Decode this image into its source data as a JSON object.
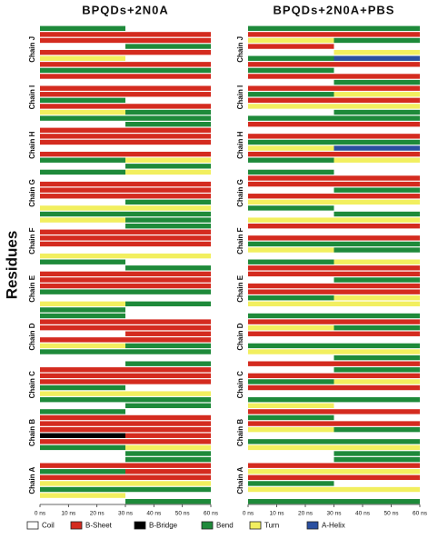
{
  "legend": [
    {
      "name": "Coil",
      "color": "#ffffff"
    },
    {
      "name": "B-Sheet",
      "color": "#d42b1f"
    },
    {
      "name": "B-Bridge",
      "color": "#000000"
    },
    {
      "name": "Bend",
      "color": "#1e8a3a"
    },
    {
      "name": "Turn",
      "color": "#f2ef5f"
    },
    {
      "name": "A-Helix",
      "color": "#2a4fa0"
    }
  ],
  "chart_data": [
    {
      "type": "heatmap",
      "title": "BPQDs+2N0A",
      "y_label": "Residues",
      "categories": [
        "Chain J",
        "Chain I",
        "Chain H",
        "Chain G",
        "Chain F",
        "Chain E",
        "Chain D",
        "Chain C",
        "Chain B",
        "Chain A"
      ],
      "bins": [
        0,
        30,
        60
      ],
      "xlim": [
        0,
        60
      ],
      "xticks": [
        {
          "value": 0,
          "label": "0 ns"
        },
        {
          "value": 10,
          "label": "10 ns"
        },
        {
          "value": 20,
          "label": "20 ns"
        },
        {
          "value": 30,
          "label": "30 ns"
        },
        {
          "value": 40,
          "label": "40 ns"
        },
        {
          "value": 50,
          "label": "50 ns"
        },
        {
          "value": 60,
          "label": "60 ns"
        }
      ],
      "values": [
        [
          [
            3,
            0
          ],
          [
            1,
            1
          ],
          [
            1,
            1
          ],
          [
            0,
            3
          ],
          [
            1,
            1
          ],
          [
            4,
            0
          ],
          [
            1,
            1
          ],
          [
            3,
            3
          ]
        ],
        [
          [
            1,
            1
          ],
          [
            0,
            0
          ],
          [
            1,
            1
          ],
          [
            1,
            1
          ],
          [
            3,
            0
          ],
          [
            1,
            1
          ],
          [
            4,
            3
          ],
          [
            3,
            3
          ]
        ],
        [
          [
            0,
            3
          ],
          [
            1,
            1
          ],
          [
            1,
            1
          ],
          [
            1,
            1
          ],
          [
            0,
            0
          ],
          [
            1,
            1
          ],
          [
            3,
            4
          ],
          [
            0,
            3
          ]
        ],
        [
          [
            3,
            4
          ],
          [
            0,
            0
          ],
          [
            1,
            1
          ],
          [
            1,
            1
          ],
          [
            1,
            1
          ],
          [
            0,
            3
          ],
          [
            4,
            4
          ],
          [
            3,
            3
          ]
        ],
        [
          [
            4,
            3
          ],
          [
            0,
            3
          ],
          [
            1,
            1
          ],
          [
            1,
            1
          ],
          [
            1,
            1
          ],
          [
            0,
            0
          ],
          [
            4,
            4
          ],
          [
            3,
            0
          ]
        ],
        [
          [
            0,
            3
          ],
          [
            1,
            1
          ],
          [
            1,
            1
          ],
          [
            1,
            1
          ],
          [
            3,
            3
          ],
          [
            0,
            0
          ],
          [
            4,
            3
          ],
          [
            3,
            0
          ]
        ],
        [
          [
            3,
            0
          ],
          [
            1,
            1
          ],
          [
            1,
            1
          ],
          [
            0,
            1
          ],
          [
            1,
            1
          ],
          [
            4,
            3
          ],
          [
            3,
            3
          ],
          [
            0,
            0
          ]
        ],
        [
          [
            0,
            3
          ],
          [
            1,
            1
          ],
          [
            1,
            1
          ],
          [
            1,
            1
          ],
          [
            3,
            0
          ],
          [
            4,
            4
          ],
          [
            3,
            3
          ],
          [
            0,
            3
          ]
        ],
        [
          [
            3,
            0
          ],
          [
            1,
            1
          ],
          [
            1,
            1
          ],
          [
            1,
            1
          ],
          [
            2,
            1
          ],
          [
            1,
            1
          ],
          [
            3,
            4
          ],
          [
            0,
            3
          ]
        ],
        [
          [
            0,
            3
          ],
          [
            1,
            1
          ],
          [
            3,
            1
          ],
          [
            1,
            1
          ],
          [
            4,
            4
          ],
          [
            3,
            3
          ],
          [
            4,
            0
          ],
          [
            0,
            3
          ]
        ]
      ]
    },
    {
      "type": "heatmap",
      "title": "BPQDs+2N0A+PBS",
      "categories": [
        "Chain J",
        "Chain I",
        "Chain H",
        "Chain G",
        "Chain F",
        "Chain E",
        "Chain D",
        "Chain C",
        "Chain B",
        "Chain A"
      ],
      "bins": [
        0,
        30,
        60
      ],
      "xlim": [
        0,
        60
      ],
      "xticks": [
        {
          "value": 0,
          "label": "0 ns"
        },
        {
          "value": 10,
          "label": "10 ns"
        },
        {
          "value": 20,
          "label": "20 ns"
        },
        {
          "value": 30,
          "label": "30 ns"
        },
        {
          "value": 40,
          "label": "40 ns"
        },
        {
          "value": 50,
          "label": "50 ns"
        },
        {
          "value": 60,
          "label": "60 ns"
        }
      ],
      "values": [
        [
          [
            3,
            3
          ],
          [
            1,
            1
          ],
          [
            4,
            3
          ],
          [
            1,
            0
          ],
          [
            0,
            4
          ],
          [
            3,
            5
          ],
          [
            1,
            1
          ],
          [
            3,
            0
          ]
        ],
        [
          [
            1,
            1
          ],
          [
            0,
            3
          ],
          [
            1,
            1
          ],
          [
            3,
            4
          ],
          [
            1,
            1
          ],
          [
            4,
            4
          ],
          [
            0,
            3
          ],
          [
            3,
            3
          ]
        ],
        [
          [
            1,
            1
          ],
          [
            0,
            0
          ],
          [
            1,
            1
          ],
          [
            3,
            3
          ],
          [
            4,
            5
          ],
          [
            1,
            1
          ],
          [
            3,
            4
          ],
          [
            0,
            0
          ]
        ],
        [
          [
            3,
            0
          ],
          [
            1,
            1
          ],
          [
            1,
            1
          ],
          [
            0,
            3
          ],
          [
            1,
            1
          ],
          [
            4,
            4
          ],
          [
            3,
            0
          ],
          [
            0,
            3
          ]
        ],
        [
          [
            4,
            4
          ],
          [
            1,
            1
          ],
          [
            0,
            0
          ],
          [
            1,
            1
          ],
          [
            3,
            3
          ],
          [
            4,
            3
          ],
          [
            0,
            0
          ],
          [
            3,
            4
          ]
        ],
        [
          [
            1,
            1
          ],
          [
            1,
            1
          ],
          [
            0,
            3
          ],
          [
            1,
            1
          ],
          [
            1,
            1
          ],
          [
            3,
            4
          ],
          [
            4,
            4
          ],
          [
            0,
            0
          ]
        ],
        [
          [
            3,
            3
          ],
          [
            1,
            1
          ],
          [
            4,
            3
          ],
          [
            1,
            1
          ],
          [
            0,
            0
          ],
          [
            3,
            3
          ],
          [
            4,
            4
          ],
          [
            0,
            3
          ]
        ],
        [
          [
            1,
            1
          ],
          [
            0,
            3
          ],
          [
            1,
            1
          ],
          [
            3,
            4
          ],
          [
            1,
            1
          ],
          [
            0,
            0
          ],
          [
            3,
            3
          ],
          [
            4,
            0
          ]
        ],
        [
          [
            1,
            1
          ],
          [
            3,
            0
          ],
          [
            1,
            1
          ],
          [
            4,
            3
          ],
          [
            0,
            0
          ],
          [
            3,
            3
          ],
          [
            4,
            4
          ],
          [
            0,
            3
          ]
        ],
        [
          [
            0,
            3
          ],
          [
            1,
            1
          ],
          [
            4,
            4
          ],
          [
            1,
            1
          ],
          [
            3,
            0
          ],
          [
            4,
            4
          ],
          [
            0,
            0
          ],
          [
            3,
            3
          ]
        ]
      ]
    }
  ]
}
